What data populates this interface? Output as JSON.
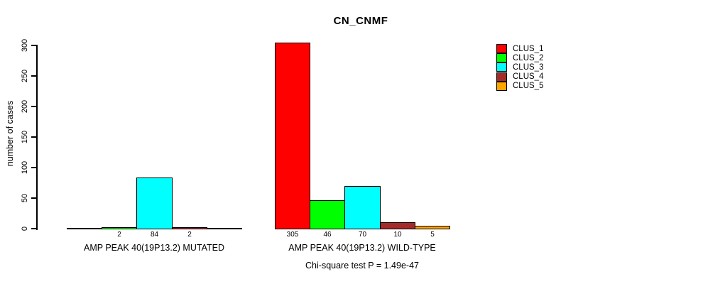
{
  "chart_data": {
    "type": "bar",
    "title": "CN_CNMF",
    "ylabel": "number of cases",
    "xlabel": "",
    "ylim": [
      0,
      300
    ],
    "yticks": [
      0,
      50,
      100,
      150,
      200,
      250,
      300
    ],
    "grid": false,
    "legend": {
      "position": "top-right",
      "entries": [
        {
          "label": "CLUS_1",
          "color": "#FF0000"
        },
        {
          "label": "CLUS_2",
          "color": "#00FF00"
        },
        {
          "label": "CLUS_3",
          "color": "#00FFFF"
        },
        {
          "label": "CLUS_4",
          "color": "#A52A2A"
        },
        {
          "label": "CLUS_5",
          "color": "#FFA500"
        }
      ]
    },
    "series_colors": [
      "#FF0000",
      "#00FF00",
      "#00FFFF",
      "#A52A2A",
      "#FFA500"
    ],
    "groups": [
      {
        "label": "AMP PEAK 40(19P13.2) MUTATED",
        "values": [
          0,
          2,
          84,
          2,
          0
        ],
        "value_labels": [
          "",
          "2",
          "84",
          "2",
          ""
        ]
      },
      {
        "label": "AMP PEAK 40(19P13.2) WILD-TYPE",
        "values": [
          305,
          46,
          70,
          10,
          5
        ],
        "value_labels": [
          "305",
          "46",
          "70",
          "10",
          "5"
        ]
      }
    ],
    "annotation": "Chi-square test P = 1.49e-47"
  }
}
